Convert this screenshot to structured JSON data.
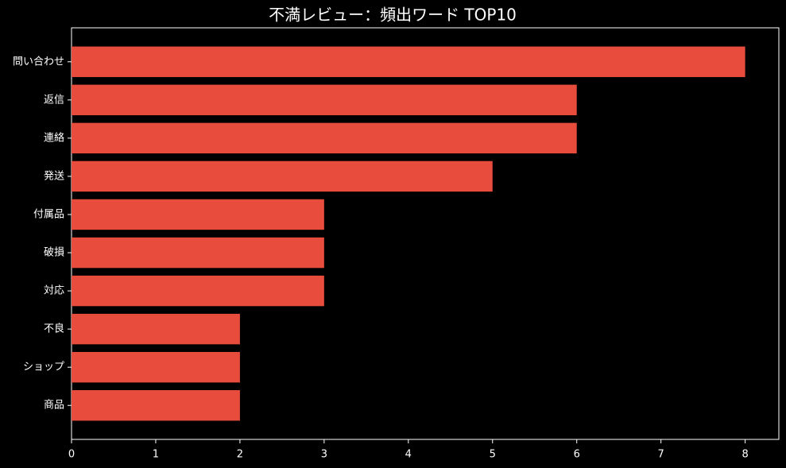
{
  "chart_data": {
    "type": "bar",
    "orientation": "horizontal",
    "title": "不満レビュー：頻出ワード TOP10",
    "categories": [
      "問い合わせ",
      "返信",
      "連絡",
      "発送",
      "付属品",
      "破損",
      "対応",
      "不良",
      "ショップ",
      "商品"
    ],
    "values": [
      8,
      6,
      6,
      5,
      3,
      3,
      3,
      2,
      2,
      2
    ],
    "color": "#e74c3c",
    "xlim": [
      0,
      8.4
    ],
    "xticks": [
      0,
      1,
      2,
      3,
      4,
      5,
      6,
      7,
      8
    ],
    "grid": false
  }
}
